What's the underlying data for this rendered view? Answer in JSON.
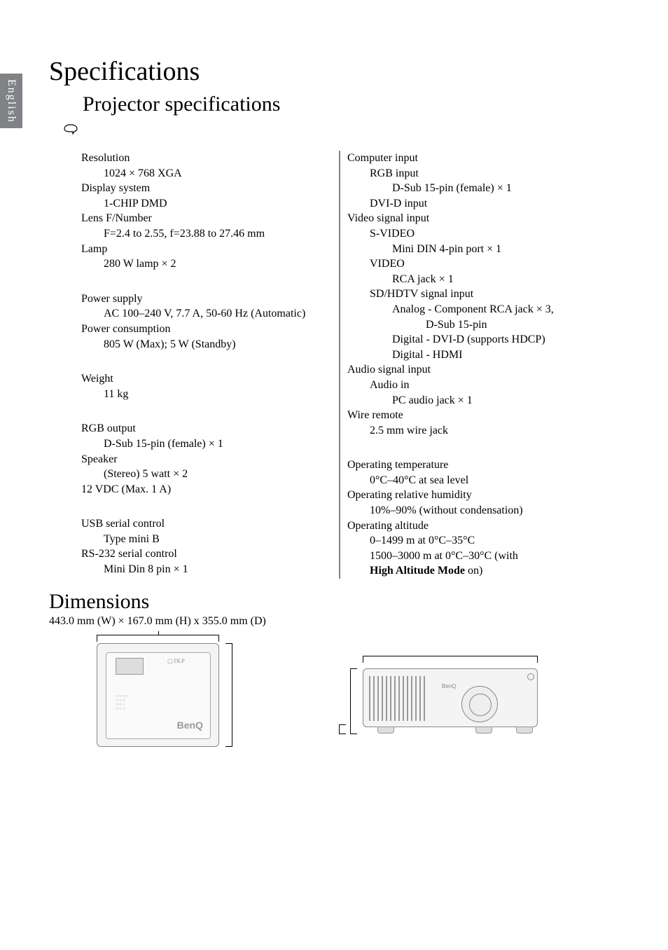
{
  "side_tab": "English",
  "title": "Specifications",
  "subtitle": "Projector specifications",
  "left": {
    "optical": [
      {
        "k": "Resolution",
        "v": "1024 × 768 XGA"
      },
      {
        "k": "Display system",
        "v": "1-CHIP DMD"
      },
      {
        "k": "Lens F/Number",
        "v": "F=2.4 to 2.55, f=23.88 to 27.46 mm"
      },
      {
        "k": "Lamp",
        "v": "280 W lamp × 2"
      }
    ],
    "electrical": [
      {
        "k": "Power supply",
        "v": "AC 100–240 V, 7.7 A, 50-60 Hz (Automatic)"
      },
      {
        "k": "Power consumption",
        "v": "805 W (Max); 5 W (Standby)"
      }
    ],
    "mechanical": [
      {
        "k": "Weight",
        "v": "11 kg"
      }
    ],
    "output": [
      {
        "k": "RGB output",
        "v": "D-Sub 15-pin (female) × 1"
      },
      {
        "k": "Speaker",
        "v": "(Stereo) 5 watt × 2"
      },
      {
        "k": "12 VDC (Max. 1 A)",
        "v": null
      }
    ],
    "control": [
      {
        "k": "USB serial control",
        "v": "Type mini B"
      },
      {
        "k": "RS-232 serial control",
        "v": "Mini Din 8 pin × 1"
      }
    ]
  },
  "right": {
    "input": {
      "computer": {
        "label": "Computer input",
        "items": [
          {
            "k": "RGB input",
            "v": "D-Sub 15-pin (female) × 1"
          },
          {
            "k": "DVI-D input",
            "v": null
          }
        ]
      },
      "video": {
        "label": "Video signal input",
        "items": [
          {
            "k": "S-VIDEO",
            "v": "Mini DIN 4-pin port × 1"
          },
          {
            "k": "VIDEO",
            "v": "RCA jack × 1"
          },
          {
            "k": "SD/HDTV signal input",
            "v": null,
            "sub": [
              "Analog - Component RCA jack × 3,",
              "D-Sub 15-pin",
              "Digital - DVI-D (supports HDCP)",
              "Digital - HDMI"
            ]
          }
        ]
      },
      "audio": {
        "label": "Audio signal input",
        "items": [
          {
            "k": "Audio in",
            "v": "PC audio jack × 1"
          }
        ]
      },
      "wire": {
        "label": "Wire remote",
        "v": "2.5 mm wire jack"
      }
    },
    "env": [
      {
        "k": "Operating temperature",
        "v": "0°C–40°C at sea level"
      },
      {
        "k": "Operating relative humidity",
        "v": "10%–90% (without condensation)"
      },
      {
        "k": "Operating altitude",
        "v": null,
        "sub": [
          "0–1499 m at 0°C–35°C",
          "1500–3000 m at 0°C–30°C (with",
          "<b>High Altitude Mode</b> on)"
        ]
      }
    ]
  },
  "dims_title": "Dimensions",
  "dims_line": "443.0 mm (W) × 167.0 mm (H) x 355.0 mm (D)",
  "benq_logo": "BenQ",
  "colors": {
    "tab_bg": "#808285",
    "tab_fg": "#ffffff",
    "divider": "#808285",
    "text": "#000000"
  },
  "fonts": {
    "h1_size_pt": 28,
    "h2_size_pt": 22,
    "body_size_pt": 12
  }
}
